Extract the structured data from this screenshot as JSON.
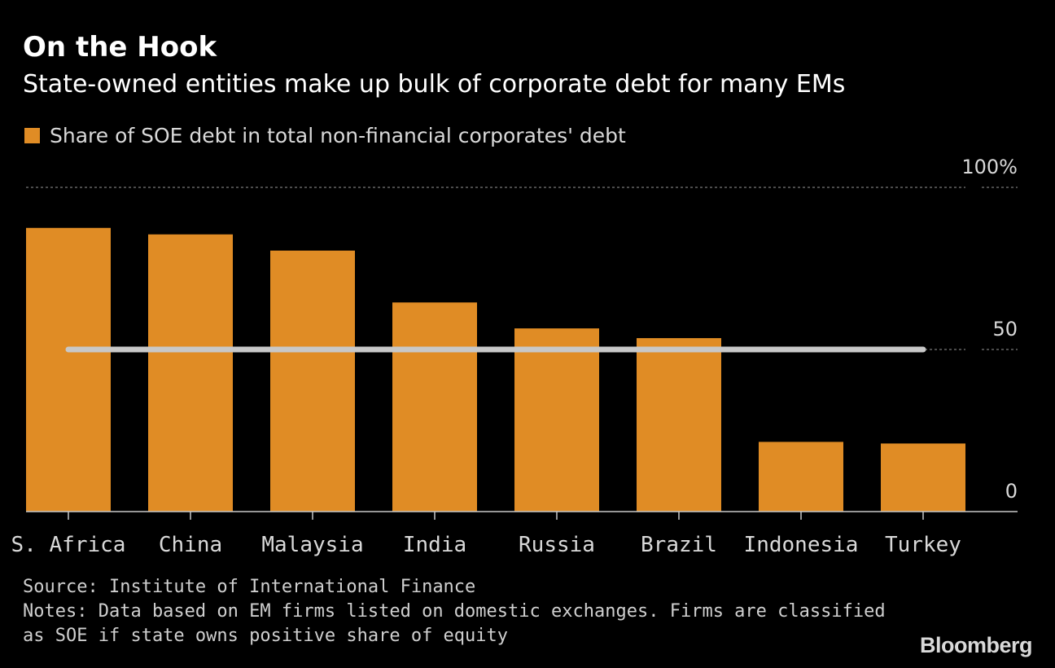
{
  "header": {
    "title": "On the Hook",
    "subtitle": "State-owned entities make up bulk of corporate debt for many EMs"
  },
  "legend": {
    "label": "Share of SOE debt in total non-financial corporates' debt",
    "color": "#e08c25"
  },
  "footer": {
    "source": "Source: Institute of International Finance",
    "notes_line1": "Notes: Data based on EM firms listed on domestic exchanges. Firms are classified",
    "notes_line2": "as SOE if state owns positive share of equity",
    "brand": "Bloomberg"
  },
  "colors": {
    "background": "#000000",
    "bar": "#e08c25",
    "reference_line": "#c8c8c8",
    "grid": "#7a7a7a",
    "axis": "#c8c8c8",
    "tick_text": "#d9d9d9"
  },
  "chart_data": {
    "type": "bar",
    "title": "On the Hook",
    "subtitle": "State-owned entities make up bulk of corporate debt for many EMs",
    "categories": [
      "S. Africa",
      "China",
      "Malaysia",
      "India",
      "Russia",
      "Brazil",
      "Indonesia",
      "Turkey"
    ],
    "series": [
      {
        "name": "Share of SOE debt in total non-financial corporates' debt",
        "values": [
          87.5,
          85.5,
          80.5,
          64.5,
          56.5,
          53.5,
          21.5,
          21
        ]
      }
    ],
    "reference_line": {
      "value": 50,
      "label": ""
    },
    "ylim": [
      0,
      100
    ],
    "yticks": [
      {
        "value": 100,
        "label": "100%"
      },
      {
        "value": 50,
        "label": "50"
      },
      {
        "value": 0,
        "label": "0"
      }
    ],
    "grid": true,
    "xlabel": "",
    "ylabel": ""
  }
}
